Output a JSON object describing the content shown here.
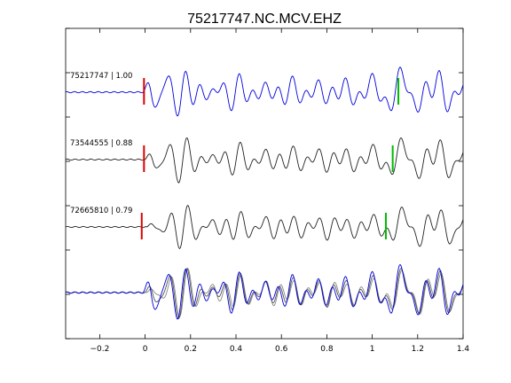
{
  "chart_data": {
    "type": "line",
    "title": "75217747.NC.MCV.EHZ",
    "xlabel": "",
    "ylabel": "",
    "xlim": [
      -0.35,
      1.4
    ],
    "x_ticks": [
      -0.2,
      0,
      0.2,
      0.4,
      0.6,
      0.8,
      1,
      1.2,
      1.4
    ],
    "x_tick_labels": [
      "−0.2",
      "0",
      "0.2",
      "0.4",
      "0.6",
      "0.8",
      "1",
      "1.2",
      "1.4"
    ],
    "grid": false,
    "colors": {
      "master": "#0000dd",
      "other": "#222222",
      "p_pick": "#dd0000",
      "s_pick": "#00bb00",
      "stack_gray": "#888888"
    },
    "traces": [
      {
        "label": "75217747 | 1.00",
        "event_id": "75217747",
        "correlation": 1.0,
        "color": "blue",
        "p_pick": -0.005,
        "s_pick": 1.115,
        "amplitude": 1.0,
        "shift": 0.0,
        "seed": 1
      },
      {
        "label": "73544555 | 0.88",
        "event_id": "73544555",
        "correlation": 0.88,
        "color": "black",
        "p_pick": -0.005,
        "s_pick": 1.09,
        "amplitude": 0.92,
        "shift": 0.008,
        "seed": 2
      },
      {
        "label": "72665810 | 0.79",
        "event_id": "72665810",
        "correlation": 0.79,
        "color": "black",
        "p_pick": -0.015,
        "s_pick": 1.06,
        "amplitude": 0.88,
        "shift": 0.015,
        "seed": 3
      }
    ],
    "stack": {
      "label": "overlay",
      "series_colors": [
        "gray",
        "gray",
        "blue"
      ]
    }
  }
}
